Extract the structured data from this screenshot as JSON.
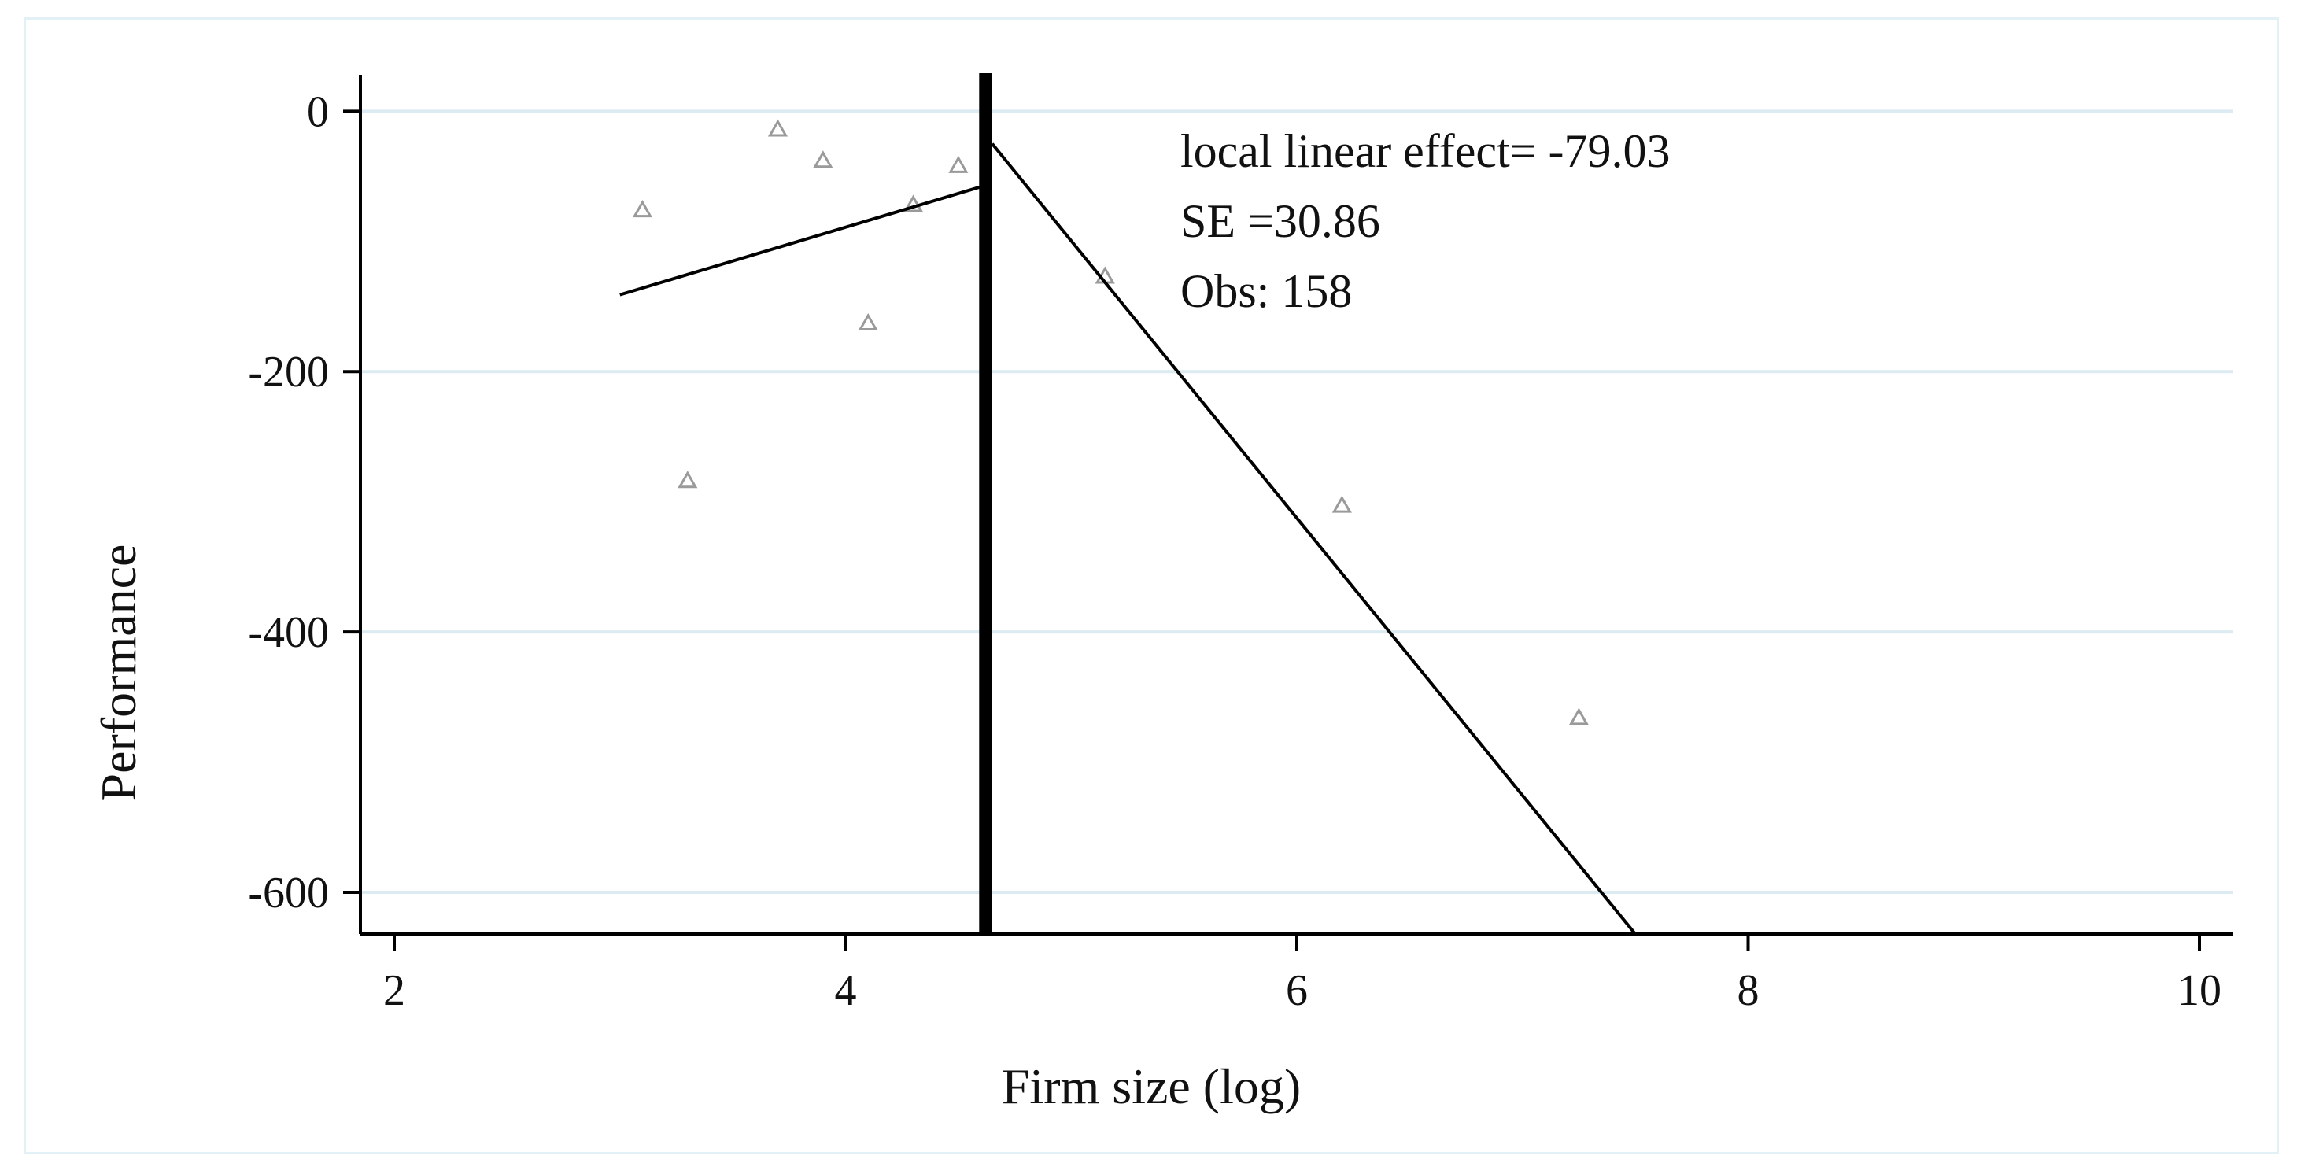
{
  "chart_data": {
    "type": "scatter",
    "title": "",
    "xlabel": "Firm size (log)",
    "ylabel": "Performance",
    "xlim": [
      1.85,
      10.15
    ],
    "ylim": [
      -632,
      28
    ],
    "xticks": [
      2,
      4,
      6,
      8,
      10
    ],
    "yticks": [
      0,
      -200,
      -400,
      -600
    ],
    "grid": true,
    "cutoff": 4.62,
    "points": [
      {
        "x": 3.1,
        "y": -76
      },
      {
        "x": 3.3,
        "y": -284
      },
      {
        "x": 3.7,
        "y": -14
      },
      {
        "x": 3.9,
        "y": -38
      },
      {
        "x": 4.1,
        "y": -163
      },
      {
        "x": 4.3,
        "y": -72
      },
      {
        "x": 4.5,
        "y": -42
      },
      {
        "x": 5.15,
        "y": -127
      },
      {
        "x": 6.2,
        "y": -303
      },
      {
        "x": 7.25,
        "y": -466
      }
    ],
    "fit_lines": [
      {
        "x": [
          3.0,
          4.6
        ],
        "y": [
          -141,
          -58
        ]
      },
      {
        "x": [
          4.65,
          7.5
        ],
        "y": [
          -25,
          -632
        ]
      }
    ],
    "annotations": [
      "local linear effect= -79.03",
      "SE =30.86",
      "Obs: 158"
    ],
    "colors": {
      "grid": "#dcebf1",
      "points": "#9a9a9a",
      "lines": "#000000",
      "cutoff_line": "#000000",
      "frame": "#e3f1f7"
    }
  }
}
